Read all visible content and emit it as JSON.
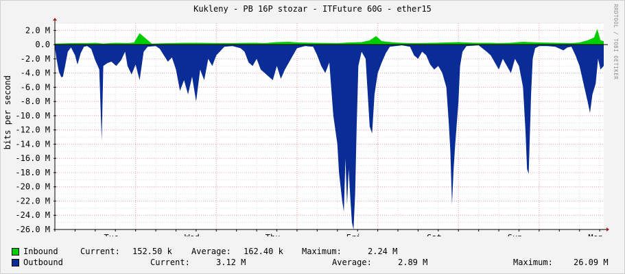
{
  "title": "Kukleny - PB 16P stozar - ITFuture 60G - ether15",
  "watermark": "RRDTOOL / TOBI OETIKER",
  "colors": {
    "inbound": "#00CC00",
    "outbound": "#0A2C96",
    "grid_minor": "#dcdcdc",
    "grid_major": "#f0a0a0",
    "axis": "#000000",
    "background": "#f3f3f3",
    "plot_bg": "#ffffff"
  },
  "chart_data": {
    "type": "area",
    "ylabel": "bits per second",
    "ylim": [
      -26000000,
      3000000
    ],
    "y_ticks": [
      "2.0 M",
      "0.0",
      "-2.0 M",
      "-4.0 M",
      "-6.0 M",
      "-8.0 M",
      "-10.0 M",
      "-12.0 M",
      "-14.0 M",
      "-16.0 M",
      "-18.0 M",
      "-20.0 M",
      "-22.0 M",
      "-24.0 M",
      "-26.0 M"
    ],
    "y_tick_values": [
      2,
      0,
      -2,
      -4,
      -6,
      -8,
      -10,
      -12,
      -14,
      -16,
      -18,
      -20,
      -22,
      -24,
      -26
    ],
    "x_unit": "days",
    "x_range": [
      0,
      6.8
    ],
    "x_ticks": [
      "Tue",
      "Wed",
      "Thu",
      "Fri",
      "Sat",
      "Sun",
      "Mon"
    ],
    "x_tick_days": [
      0.7,
      1.7,
      2.7,
      3.7,
      4.7,
      5.7,
      6.7
    ],
    "grid": true,
    "legend_position": "bottom",
    "series": [
      {
        "name": "Inbound",
        "points": [
          [
            0,
            0.15
          ],
          [
            0.2,
            0.2
          ],
          [
            0.4,
            0.2
          ],
          [
            0.5,
            0.25
          ],
          [
            0.6,
            0.15
          ],
          [
            0.75,
            0.25
          ],
          [
            0.9,
            0.2
          ],
          [
            0.98,
            0.3
          ],
          [
            1.05,
            1.6
          ],
          [
            1.2,
            0.15
          ],
          [
            1.4,
            0.2
          ],
          [
            1.6,
            0.25
          ],
          [
            1.8,
            0.25
          ],
          [
            2.0,
            0.2
          ],
          [
            2.2,
            0.2
          ],
          [
            2.4,
            0.25
          ],
          [
            2.5,
            0.25
          ],
          [
            2.6,
            0.2
          ],
          [
            2.75,
            0.35
          ],
          [
            2.9,
            0.4
          ],
          [
            3.0,
            0.3
          ],
          [
            3.2,
            0.25
          ],
          [
            3.5,
            0.2
          ],
          [
            3.65,
            0.3
          ],
          [
            3.8,
            0.35
          ],
          [
            3.9,
            0.6
          ],
          [
            3.98,
            1.2
          ],
          [
            4.05,
            0.5
          ],
          [
            4.2,
            0.3
          ],
          [
            4.4,
            0.2
          ],
          [
            4.5,
            0.2
          ],
          [
            4.7,
            0.25
          ],
          [
            4.85,
            0.3
          ],
          [
            5.0,
            0.35
          ],
          [
            5.2,
            0.25
          ],
          [
            5.4,
            0.25
          ],
          [
            5.5,
            0.2
          ],
          [
            5.65,
            0.25
          ],
          [
            5.8,
            0.4
          ],
          [
            6.0,
            0.3
          ],
          [
            6.2,
            0.25
          ],
          [
            6.4,
            0.2
          ],
          [
            6.5,
            0.3
          ],
          [
            6.6,
            0.6
          ],
          [
            6.68,
            1.0
          ],
          [
            6.72,
            2.2
          ],
          [
            6.76,
            0.6
          ],
          [
            6.8,
            0.5
          ]
        ]
      },
      {
        "name": "Outbound",
        "points": [
          [
            0,
            -0.3
          ],
          [
            0.02,
            -2.0
          ],
          [
            0.05,
            -3.8
          ],
          [
            0.08,
            -4.6
          ],
          [
            0.1,
            -4.5
          ],
          [
            0.13,
            -2.8
          ],
          [
            0.16,
            -1.0
          ],
          [
            0.2,
            -0.4
          ],
          [
            0.25,
            -1.5
          ],
          [
            0.28,
            -2.8
          ],
          [
            0.32,
            -1.2
          ],
          [
            0.36,
            -0.3
          ],
          [
            0.4,
            -0.2
          ],
          [
            0.45,
            -0.6
          ],
          [
            0.5,
            -2.2
          ],
          [
            0.55,
            -3.5
          ],
          [
            0.58,
            -13.5
          ],
          [
            0.6,
            -3.0
          ],
          [
            0.65,
            -2.6
          ],
          [
            0.7,
            -2.4
          ],
          [
            0.76,
            -3.0
          ],
          [
            0.82,
            -2.2
          ],
          [
            0.87,
            -1.0
          ],
          [
            0.9,
            -3.0
          ],
          [
            0.95,
            -4.2
          ],
          [
            1.0,
            -2.8
          ],
          [
            1.05,
            -5.0
          ],
          [
            1.1,
            -1.0
          ],
          [
            1.15,
            -0.3
          ],
          [
            1.25,
            -0.2
          ],
          [
            1.3,
            -0.6
          ],
          [
            1.35,
            -1.5
          ],
          [
            1.4,
            -2.4
          ],
          [
            1.45,
            -1.8
          ],
          [
            1.5,
            -3.5
          ],
          [
            1.55,
            -6.5
          ],
          [
            1.6,
            -5.0
          ],
          [
            1.65,
            -7.0
          ],
          [
            1.7,
            -4.5
          ],
          [
            1.75,
            -8.0
          ],
          [
            1.8,
            -3.5
          ],
          [
            1.85,
            -5.0
          ],
          [
            1.9,
            -2.0
          ],
          [
            1.95,
            -3.0
          ],
          [
            2.0,
            -1.5
          ],
          [
            2.1,
            -0.3
          ],
          [
            2.2,
            -0.2
          ],
          [
            2.3,
            -0.5
          ],
          [
            2.35,
            -1.0
          ],
          [
            2.4,
            -2.5
          ],
          [
            2.45,
            -3.0
          ],
          [
            2.5,
            -2.0
          ],
          [
            2.55,
            -3.5
          ],
          [
            2.6,
            -4.0
          ],
          [
            2.65,
            -4.5
          ],
          [
            2.7,
            -5.0
          ],
          [
            2.75,
            -3.0
          ],
          [
            2.8,
            -4.8
          ],
          [
            2.85,
            -3.5
          ],
          [
            2.9,
            -2.5
          ],
          [
            2.95,
            -1.5
          ],
          [
            3.0,
            -0.5
          ],
          [
            3.1,
            -0.2
          ],
          [
            3.2,
            -0.3
          ],
          [
            3.25,
            -1.5
          ],
          [
            3.3,
            -3.0
          ],
          [
            3.35,
            -4.0
          ],
          [
            3.4,
            -2.5
          ],
          [
            3.45,
            -10.0
          ],
          [
            3.5,
            -14.0
          ],
          [
            3.52,
            -18.0
          ],
          [
            3.54,
            -20.0
          ],
          [
            3.56,
            -22.0
          ],
          [
            3.58,
            -23.5
          ],
          [
            3.6,
            -16.0
          ],
          [
            3.62,
            -22.5
          ],
          [
            3.64,
            -17.5
          ],
          [
            3.66,
            -21.5
          ],
          [
            3.68,
            -25.0
          ],
          [
            3.7,
            -26.0
          ],
          [
            3.72,
            -21.0
          ],
          [
            3.74,
            -11.0
          ],
          [
            3.76,
            -3.0
          ],
          [
            3.8,
            -1.0
          ],
          [
            3.85,
            -2.0
          ],
          [
            3.9,
            -11.5
          ],
          [
            3.93,
            -12.5
          ],
          [
            3.96,
            -7.0
          ],
          [
            4.0,
            -4.0
          ],
          [
            4.05,
            -2.5
          ],
          [
            4.1,
            -1.2
          ],
          [
            4.15,
            -0.3
          ],
          [
            4.3,
            -0.1
          ],
          [
            4.4,
            -0.3
          ],
          [
            4.45,
            -1.5
          ],
          [
            4.5,
            -2.0
          ],
          [
            4.55,
            -1.0
          ],
          [
            4.6,
            -1.5
          ],
          [
            4.65,
            -2.8
          ],
          [
            4.7,
            -3.5
          ],
          [
            4.75,
            -3.0
          ],
          [
            4.8,
            -4.0
          ],
          [
            4.85,
            -6.0
          ],
          [
            4.88,
            -11.0
          ],
          [
            4.9,
            -15.0
          ],
          [
            4.92,
            -22.5
          ],
          [
            4.94,
            -17.5
          ],
          [
            4.96,
            -14.0
          ],
          [
            4.98,
            -11.0
          ],
          [
            5.0,
            -8.0
          ],
          [
            5.02,
            -3.0
          ],
          [
            5.05,
            -1.0
          ],
          [
            5.1,
            -0.2
          ],
          [
            5.25,
            -0.1
          ],
          [
            5.35,
            -1.0
          ],
          [
            5.4,
            -1.5
          ],
          [
            5.45,
            -2.5
          ],
          [
            5.5,
            -3.5
          ],
          [
            5.55,
            -2.0
          ],
          [
            5.6,
            -3.0
          ],
          [
            5.65,
            -4.0
          ],
          [
            5.7,
            -2.0
          ],
          [
            5.75,
            -3.0
          ],
          [
            5.8,
            -6.0
          ],
          [
            5.83,
            -12.0
          ],
          [
            5.85,
            -17.5
          ],
          [
            5.87,
            -18.2
          ],
          [
            5.9,
            -7.0
          ],
          [
            5.92,
            -2.0
          ],
          [
            5.95,
            -0.5
          ],
          [
            6.0,
            -0.2
          ],
          [
            6.1,
            -0.2
          ],
          [
            6.2,
            -0.3
          ],
          [
            6.3,
            -0.8
          ],
          [
            6.35,
            -0.4
          ],
          [
            6.4,
            -0.3
          ],
          [
            6.45,
            -1.5
          ],
          [
            6.5,
            -3.0
          ],
          [
            6.55,
            -5.5
          ],
          [
            6.6,
            -8.0
          ],
          [
            6.63,
            -9.6
          ],
          [
            6.66,
            -7.0
          ],
          [
            6.7,
            -5.5
          ],
          [
            6.73,
            -2.0
          ],
          [
            6.76,
            -3.5
          ],
          [
            6.8,
            -3.0
          ]
        ]
      }
    ]
  },
  "legend": [
    {
      "name": "Inbound",
      "current_label": "Current:",
      "current": "152.50 k",
      "average_label": "Average:",
      "average": "162.40 k",
      "maximum_label": "Maximum:",
      "maximum": "2.24 M"
    },
    {
      "name": "Outbound",
      "current_label": "Current:",
      "current": "3.12 M",
      "average_label": "Average:",
      "average": "2.89 M",
      "maximum_label": "Maximum:",
      "maximum": "26.09 M"
    }
  ]
}
